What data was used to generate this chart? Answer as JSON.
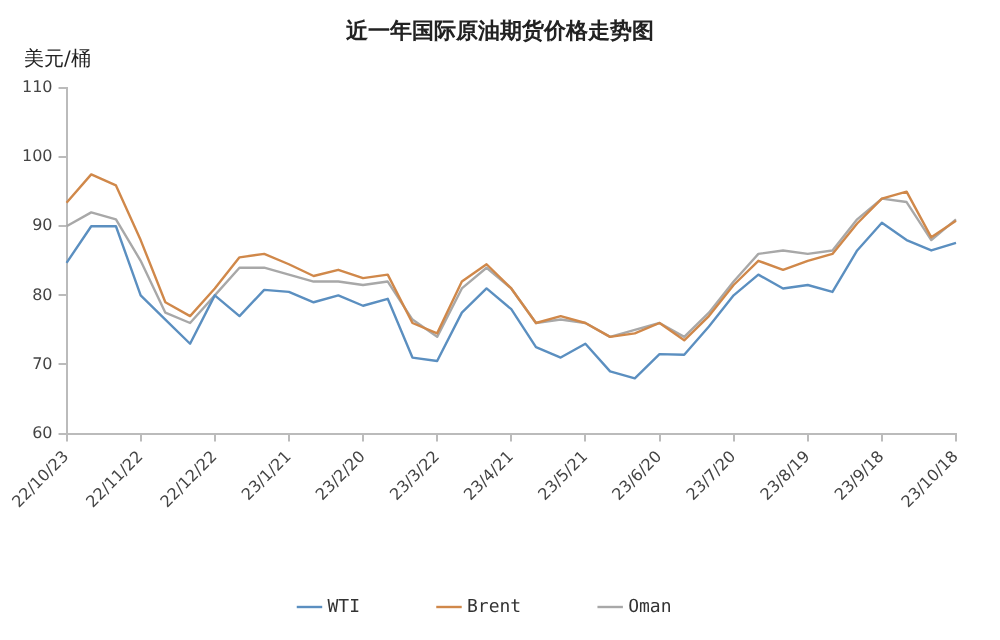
{
  "chart_data": {
    "type": "line",
    "title": "近一年国际原油期货价格走势图",
    "ylabel": "美元/桶",
    "categories": [
      "22/10/23",
      null,
      null,
      "22/11/22",
      null,
      null,
      "22/12/22",
      null,
      null,
      "23/1/21",
      null,
      null,
      "23/2/20",
      null,
      null,
      "23/3/22",
      null,
      null,
      "23/4/21",
      null,
      null,
      "23/5/21",
      null,
      null,
      "23/6/20",
      null,
      null,
      "23/7/20",
      null,
      null,
      "23/8/19",
      null,
      null,
      "23/9/18",
      null,
      null,
      "23/10/18"
    ],
    "series": [
      {
        "name": "WTI",
        "color": "#5b8fc0",
        "values": [
          84.7,
          90,
          90,
          80,
          76.5,
          73,
          80,
          77,
          80.8,
          80.5,
          79,
          80,
          78.5,
          79.5,
          71,
          70.5,
          77.5,
          81,
          78,
          72.5,
          71,
          73,
          69,
          68,
          71.5,
          71.4,
          75.5,
          80,
          83,
          81,
          81.5,
          80.5,
          86.5,
          90.5,
          88,
          86.5,
          87.6
        ]
      },
      {
        "name": "Brent",
        "color": "#d0884a",
        "values": [
          93.4,
          97.5,
          95.9,
          88,
          79,
          77,
          81,
          85.5,
          86,
          84.5,
          82.8,
          83.7,
          82.5,
          83,
          76,
          74.5,
          82,
          84.5,
          81,
          76,
          77,
          76,
          74,
          74.5,
          76,
          73.5,
          77,
          81.5,
          85,
          83.7,
          85,
          86,
          90.4,
          94,
          95,
          88.4,
          90.8
        ]
      },
      {
        "name": "Oman",
        "color": "#a8a8a8",
        "values": [
          90,
          92,
          91,
          85,
          77.5,
          76,
          80,
          84,
          84,
          83,
          82,
          82,
          81.5,
          82,
          76.5,
          74,
          81,
          84,
          81,
          76,
          76.5,
          76,
          74,
          75,
          76,
          74,
          77.5,
          82,
          86,
          86.5,
          86,
          86.5,
          91,
          94,
          93.5,
          88,
          91
        ]
      }
    ],
    "ylim": [
      60,
      110
    ],
    "yticks": [
      60,
      70,
      80,
      90,
      100,
      110
    ],
    "grid": false,
    "legend": "bottom",
    "marker": "none",
    "line_style": "solid"
  }
}
